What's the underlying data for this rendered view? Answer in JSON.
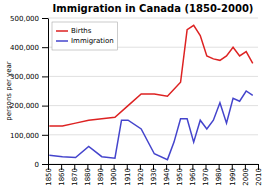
{
  "chart_data": {
    "type": "line",
    "title": "Immigration in Canada (1850-2000)",
    "ylabel": "persons per year",
    "series": [
      {
        "name": "Births",
        "color": "#dd2222",
        "x": [
          1851,
          1861,
          1871,
          1881,
          1891,
          1901,
          1911,
          1921,
          1931,
          1941,
          1951,
          1956,
          1961,
          1966,
          1971,
          1976,
          1981,
          1986,
          1991,
          1996,
          2001,
          2006
        ],
        "values": [
          130000,
          130000,
          140000,
          150000,
          155000,
          160000,
          200000,
          240000,
          240000,
          232000,
          280000,
          460000,
          475000,
          440000,
          370000,
          360000,
          355000,
          370000,
          400000,
          370000,
          385000,
          345000
        ]
      },
      {
        "name": "Immigration",
        "color": "#4444cc",
        "x": [
          1851,
          1861,
          1871,
          1881,
          1891,
          1901,
          1906,
          1911,
          1921,
          1931,
          1941,
          1946,
          1951,
          1956,
          1961,
          1966,
          1971,
          1976,
          1981,
          1986,
          1991,
          1996,
          2001,
          2006
        ],
        "values": [
          30000,
          25000,
          22000,
          60000,
          25000,
          20000,
          150000,
          150000,
          120000,
          35000,
          15000,
          75000,
          155000,
          155000,
          75000,
          150000,
          120000,
          150000,
          210000,
          140000,
          225000,
          215000,
          250000,
          235000
        ]
      }
    ],
    "xlim": [
      1850,
      2010
    ],
    "xticks": [
      1850,
      1860,
      1870,
      1880,
      1890,
      1900,
      1910,
      1920,
      1930,
      1940,
      1950,
      1960,
      1970,
      1980,
      1990,
      2000,
      2010
    ],
    "ylim": [
      0,
      500000
    ],
    "yticks": [
      0,
      {
        "value": 100000,
        "label": "100,000"
      },
      {
        "value": 200000,
        "label": "200,000"
      },
      {
        "value": 300000,
        "label": "300,000"
      },
      {
        "value": 400000,
        "label": "400,000"
      },
      {
        "value": 500000,
        "label": "500,000"
      }
    ],
    "grid": true,
    "legend": "upper left"
  }
}
